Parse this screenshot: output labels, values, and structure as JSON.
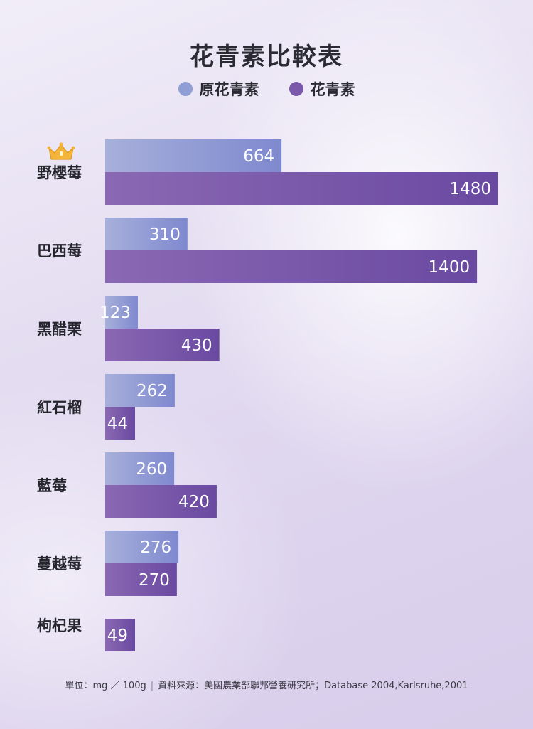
{
  "header": {
    "title": "花青素比較表"
  },
  "legend": [
    {
      "name": "原花青素",
      "color": "#8f9fd6"
    },
    {
      "name": "花青素",
      "color": "#7a59ab"
    }
  ],
  "colors": {
    "series1_start": "#a7b0da",
    "series1_end": "#7f89cf",
    "series2_start": "#8a68b3",
    "series2_end": "#6a4aa1"
  },
  "icons": {
    "top_rank": "crown-icon"
  },
  "chart_data": {
    "type": "bar",
    "orientation": "horizontal",
    "categories": [
      "野櫻莓",
      "巴西莓",
      "黑醋栗",
      "紅石榴",
      "藍莓",
      "蔓越莓",
      "枸杞果"
    ],
    "series": [
      {
        "name": "原花青素",
        "values": [
          664,
          310,
          123,
          262,
          260,
          276,
          null
        ]
      },
      {
        "name": "花青素",
        "values": [
          1480,
          1400,
          430,
          44,
          420,
          270,
          49
        ]
      }
    ],
    "xlim": [
      0,
      1500
    ],
    "grid": false,
    "legend_position": "top"
  },
  "footer": {
    "unit": "單位：mg ／ 100g",
    "source": "資料來源：美國農業部聯邦營養研究所；Database 2004,Karlsruhe,2001"
  }
}
